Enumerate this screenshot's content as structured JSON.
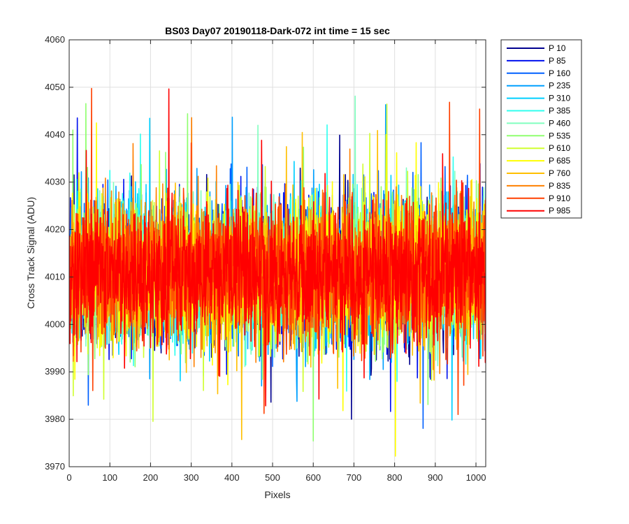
{
  "chart_data": {
    "type": "line",
    "title": "BS03 Day07 20190118-Dark-072 int time = 15 sec",
    "xlabel": "Pixels",
    "ylabel": "Cross Track Signal (ADU)",
    "xlim": [
      0,
      1024
    ],
    "ylim": [
      3970,
      4060
    ],
    "xticks": [
      0,
      100,
      200,
      300,
      400,
      500,
      600,
      700,
      800,
      900,
      1000
    ],
    "yticks": [
      3970,
      3980,
      3990,
      4000,
      4010,
      4020,
      4030,
      4040,
      4050,
      4060
    ],
    "grid": true,
    "legend_position": "outside-top-right",
    "noise": {
      "mean": 4011,
      "typical_min": 3995,
      "typical_max": 4030,
      "n_points": 1024
    },
    "series": [
      {
        "name": "P 10",
        "color": "#00008f"
      },
      {
        "name": "P 85",
        "color": "#0010ef"
      },
      {
        "name": "P 160",
        "color": "#0060ff"
      },
      {
        "name": "P 235",
        "color": "#00a0ff"
      },
      {
        "name": "P 310",
        "color": "#00cfff"
      },
      {
        "name": "P 385",
        "color": "#30ffef"
      },
      {
        "name": "P 460",
        "color": "#80ffbf"
      },
      {
        "name": "P 535",
        "color": "#90ff70"
      },
      {
        "name": "P 610",
        "color": "#d0ff30"
      },
      {
        "name": "P 685",
        "color": "#ffff00"
      },
      {
        "name": "P 760",
        "color": "#ffbf00"
      },
      {
        "name": "P 835",
        "color": "#ff8000"
      },
      {
        "name": "P 910",
        "color": "#ff4000"
      },
      {
        "name": "P 985",
        "color": "#ff0000"
      }
    ]
  }
}
